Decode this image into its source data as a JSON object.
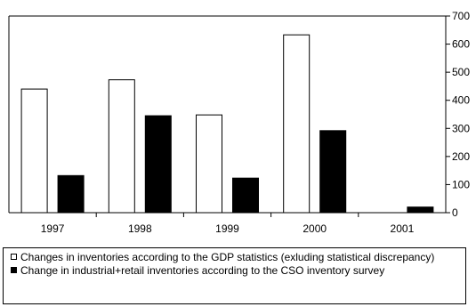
{
  "chart_data": {
    "type": "bar",
    "categories": [
      "1997",
      "1998",
      "1999",
      "2000",
      "2001"
    ],
    "series": [
      {
        "name": "Changes in inventories according to the GDP statistics (exluding statistical discrepancy)",
        "values": [
          440,
          473,
          348,
          633,
          null
        ],
        "fill": "#ffffff"
      },
      {
        "name": "Change in industrial+retail inventories according to the CSO inventory survey",
        "values": [
          132,
          345,
          123,
          292,
          20
        ],
        "fill": "#000000"
      }
    ],
    "yticks": [
      0,
      100,
      200,
      300,
      400,
      500,
      600,
      700
    ],
    "ylim": [
      0,
      700
    ],
    "y_axis_side": "right",
    "grid": false,
    "legend_placement": "bottom"
  }
}
